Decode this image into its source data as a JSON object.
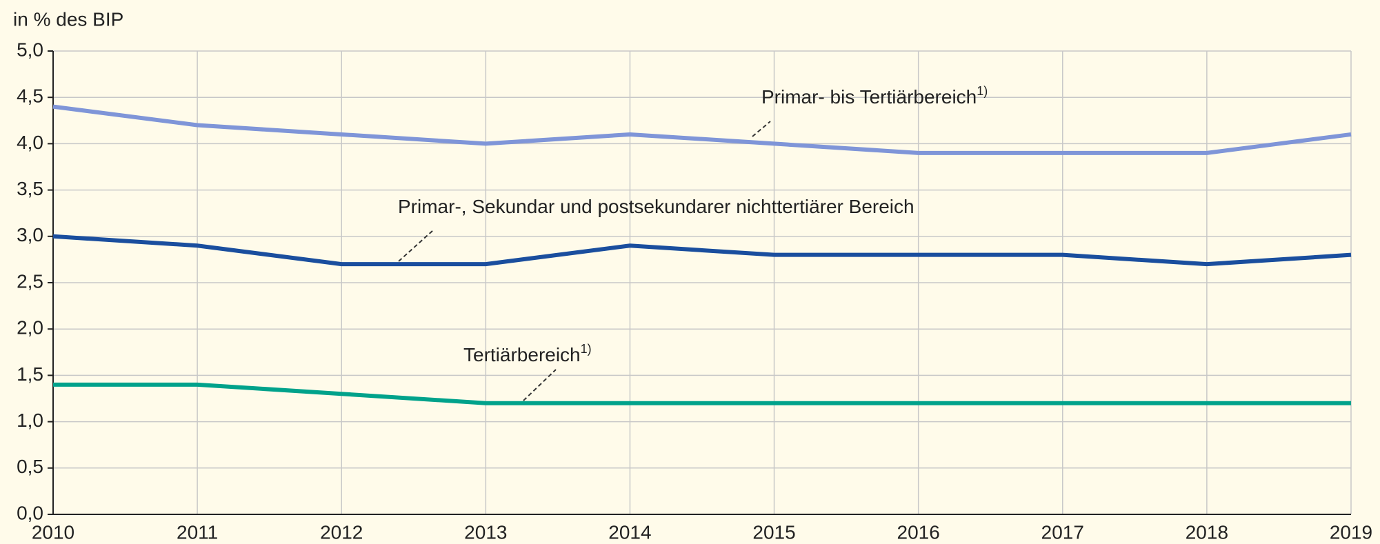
{
  "chart_data": {
    "type": "line",
    "y_label": "in % des BIP",
    "x": [
      2010,
      2011,
      2012,
      2013,
      2014,
      2015,
      2016,
      2017,
      2018,
      2019
    ],
    "xlim": [
      2010,
      2019
    ],
    "xticks": [
      2010,
      2011,
      2012,
      2013,
      2014,
      2015,
      2016,
      2017,
      2018,
      2019
    ],
    "ylim": [
      0,
      5
    ],
    "yticks": [
      {
        "value": 0,
        "label": "0,0"
      },
      {
        "value": 0.5,
        "label": "0,5"
      },
      {
        "value": 1,
        "label": "1,0"
      },
      {
        "value": 1.5,
        "label": "1,5"
      },
      {
        "value": 2,
        "label": "2,0"
      },
      {
        "value": 2.5,
        "label": "2,5"
      },
      {
        "value": 3,
        "label": "3,0"
      },
      {
        "value": 3.5,
        "label": "3,5"
      },
      {
        "value": 4,
        "label": "4,0"
      },
      {
        "value": 4.5,
        "label": "4,5"
      },
      {
        "value": 5,
        "label": "5,0"
      }
    ],
    "grid": true,
    "series": [
      {
        "name": "Primar- bis Tertiärbereich",
        "note": "1)",
        "color": "#7f95d8",
        "values": [
          4.4,
          4.2,
          4.1,
          4.0,
          4.1,
          4.0,
          3.9,
          3.9,
          3.9,
          4.1
        ]
      },
      {
        "name": "Primar-, Sekundar und postsekundarer nichttertiärer Bereich",
        "color": "#1a4e9e",
        "values": [
          3.0,
          2.9,
          2.7,
          2.7,
          2.9,
          2.8,
          2.8,
          2.8,
          2.7,
          2.8
        ]
      },
      {
        "name": "Tertiärbereich",
        "note": "1)",
        "color": "#00a28b",
        "values": [
          1.4,
          1.4,
          1.3,
          1.2,
          1.2,
          1.2,
          1.2,
          1.2,
          1.2,
          1.2
        ]
      }
    ]
  }
}
